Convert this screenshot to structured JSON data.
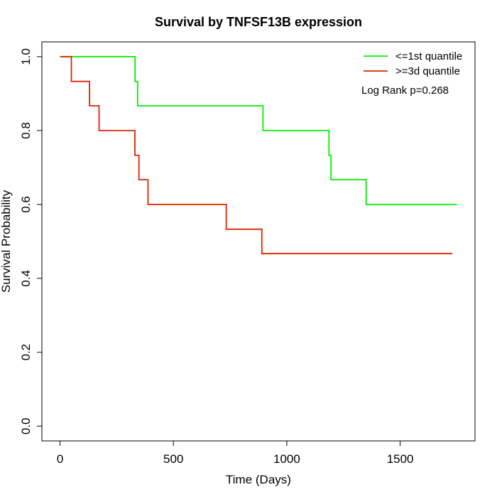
{
  "chart_data": {
    "type": "line",
    "title": "Survival by TNFSF13B expression",
    "xlabel": "Time (Days)",
    "ylabel": "Survival Probability",
    "xlim": [
      -80,
      1830
    ],
    "ylim": [
      -0.04,
      1.04
    ],
    "x_ticks": [
      0,
      500,
      1000,
      1500
    ],
    "y_ticks": [
      0.0,
      0.2,
      0.4,
      0.6,
      0.8,
      1.0
    ],
    "y_tick_labels": [
      "0.0",
      "0.2",
      "0.4",
      "0.6",
      "0.8",
      "1.0"
    ],
    "grid": false,
    "legend_position": "top-right",
    "annotation": "Log Rank p=0.268",
    "series": [
      {
        "name": "<=1st quantile",
        "color": "#00ee00",
        "steps": [
          [
            0,
            1.0
          ],
          [
            331,
            0.933
          ],
          [
            342,
            0.867
          ],
          [
            895,
            0.8
          ],
          [
            1186,
            0.733
          ],
          [
            1195,
            0.667
          ],
          [
            1350,
            0.6
          ],
          [
            1750,
            0.6
          ]
        ]
      },
      {
        "name": ">=3d quantile",
        "color": "#dd2200",
        "steps": [
          [
            0,
            1.0
          ],
          [
            50,
            0.933
          ],
          [
            130,
            0.867
          ],
          [
            172,
            0.8
          ],
          [
            330,
            0.733
          ],
          [
            348,
            0.667
          ],
          [
            388,
            0.6
          ],
          [
            733,
            0.533
          ],
          [
            890,
            0.467
          ],
          [
            1730,
            0.467
          ]
        ]
      }
    ]
  }
}
